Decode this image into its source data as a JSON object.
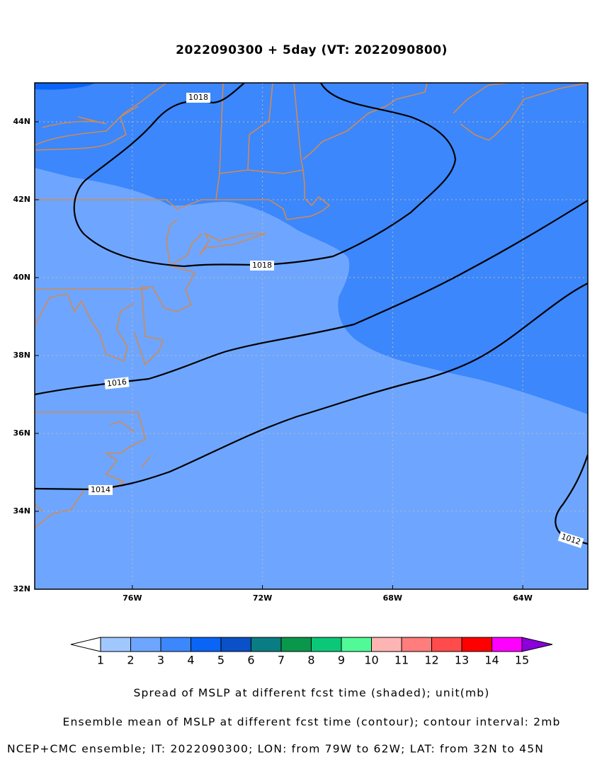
{
  "chart_data": {
    "type": "contour-map",
    "title": "2022090300 + 5day (VT: 2022090800)",
    "xlim": [
      -79,
      -62
    ],
    "ylim": [
      32,
      45
    ],
    "xticks": [
      {
        "value": -76,
        "label": "76W"
      },
      {
        "value": -72,
        "label": "72W"
      },
      {
        "value": -68,
        "label": "68W"
      },
      {
        "value": -64,
        "label": "64W"
      }
    ],
    "yticks": [
      {
        "value": 32,
        "label": "32N"
      },
      {
        "value": 34,
        "label": "34N"
      },
      {
        "value": 36,
        "label": "36N"
      },
      {
        "value": 38,
        "label": "38N"
      },
      {
        "value": 40,
        "label": "40N"
      },
      {
        "value": 42,
        "label": "42N"
      },
      {
        "value": 44,
        "label": "44N"
      }
    ],
    "grid": true,
    "contour_labels": [
      1018,
      1018,
      1016,
      1014,
      1012
    ],
    "colorbar": {
      "levels": [
        1,
        2,
        3,
        4,
        5,
        6,
        7,
        8,
        9,
        10,
        11,
        12,
        13,
        14,
        15
      ],
      "colors": [
        "#a0c8ff",
        "#6ea6ff",
        "#3c87fb",
        "#0a64f5",
        "#0a50c8",
        "#0a7d82",
        "#0a964b",
        "#0ac878",
        "#50fa96",
        "#ffb4b4",
        "#ff7d7d",
        "#ff4b4b",
        "#ff0000",
        "#ff00ff"
      ],
      "under_color": "#ffffff",
      "over_color": "#8c00dc"
    },
    "captions": [
      "Spread of MSLP at different fcst time (shaded); unit(mb)",
      "Ensemble mean of MSLP at different fcst time (contour); contour interval: 2mb",
      "NCEP+CMC ensemble; IT: 2022090300; LON: from 79W to 62W; LAT: from 32N to 45N"
    ]
  }
}
